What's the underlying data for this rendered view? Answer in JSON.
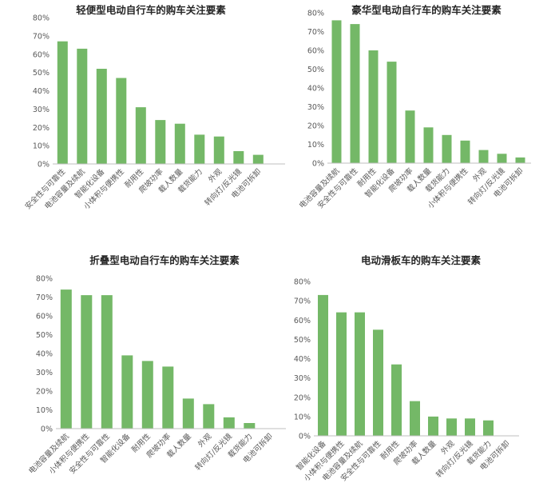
{
  "colors": {
    "bar": "#74b867",
    "axis": "#bfbfbf",
    "text": "#595959",
    "title": "#262626"
  },
  "chart_data": [
    {
      "type": "bar",
      "title": "轻便型电动自行车的购车关注要素",
      "ylim": [
        0,
        80
      ],
      "yticks": [
        "0%",
        "10%",
        "20%",
        "30%",
        "40%",
        "50%",
        "60%",
        "70%",
        "80%"
      ],
      "categories": [
        "安全性与可靠性",
        "电池容量及续航",
        "智能化设备",
        "小体积与便携性",
        "耐用性",
        "爬坡功率",
        "载人数量",
        "载货能力",
        "外观",
        "转向灯/反光镜",
        "电池可拆卸"
      ],
      "values": [
        67,
        63,
        52,
        47,
        31,
        24,
        22,
        16,
        15,
        7,
        5
      ],
      "grid": false,
      "legend": "none"
    },
    {
      "type": "bar",
      "title": "豪华型电动自行车的购车关注要素",
      "ylim": [
        0,
        80
      ],
      "yticks": [
        "0%",
        "10%",
        "20%",
        "30%",
        "40%",
        "50%",
        "60%",
        "70%",
        "80%"
      ],
      "categories": [
        "电池容量及续航",
        "安全性与可靠性",
        "耐用性",
        "智能化设备",
        "爬坡功率",
        "载人数量",
        "载货能力",
        "小体积与便携性",
        "外观",
        "转向灯/反光镜",
        "电池可拆卸"
      ],
      "values": [
        76,
        74,
        60,
        54,
        28,
        19,
        15,
        12,
        7,
        5,
        3
      ],
      "grid": false,
      "legend": "none"
    },
    {
      "type": "bar",
      "title": "折叠型电动自行车的购车关注要素",
      "ylim": [
        0,
        80
      ],
      "yticks": [
        "0%",
        "10%",
        "20%",
        "30%",
        "40%",
        "50%",
        "60%",
        "70%",
        "80%"
      ],
      "categories": [
        "电池容量及续航",
        "小体积与便携性",
        "安全性与可靠性",
        "智能化设备",
        "耐用性",
        "爬坡功率",
        "载人数量",
        "外观",
        "转向灯/反光镜",
        "载货能力",
        "电池可拆卸"
      ],
      "values": [
        74,
        71,
        71,
        39,
        36,
        33,
        16,
        13,
        6,
        3,
        0
      ],
      "grid": false,
      "legend": "none"
    },
    {
      "type": "bar",
      "title": "电动滑板车的购车关注要素",
      "ylim": [
        0,
        80
      ],
      "yticks": [
        "0%",
        "10%",
        "20%",
        "30%",
        "40%",
        "50%",
        "60%",
        "70%",
        "80%"
      ],
      "categories": [
        "智能化设备",
        "小体积与便携性",
        "电池容量及续航",
        "安全性与可靠性",
        "耐用性",
        "爬坡功率",
        "载人数量",
        "外观",
        "转向灯/反光镜",
        "载货能力",
        "电池可拆卸"
      ],
      "values": [
        73,
        64,
        64,
        55,
        37,
        18,
        10,
        9,
        9,
        8,
        0
      ],
      "grid": false,
      "legend": "none"
    }
  ]
}
